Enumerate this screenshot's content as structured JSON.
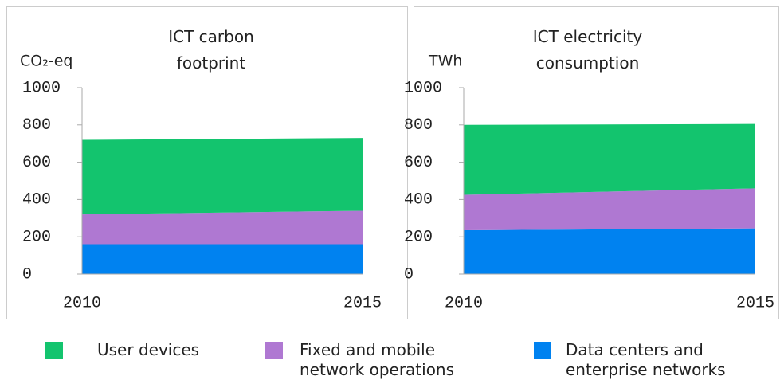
{
  "chart_data": [
    {
      "type": "stacked_area",
      "title": "ICT carbon footprint",
      "y_label": "CO₂-eq",
      "x": [
        2010,
        2015
      ],
      "xlim": [
        2010,
        2015
      ],
      "xticks": [
        2010,
        2015
      ],
      "ylim": [
        0,
        1000
      ],
      "yticks": [
        0,
        200,
        400,
        600,
        800,
        1000
      ],
      "series": [
        {
          "name": "Data centers and enterprise networks",
          "color": "#0082f0",
          "values": [
            160,
            160
          ]
        },
        {
          "name": "Fixed and mobile network operations",
          "color": "#af78d2",
          "values": [
            160,
            180
          ]
        },
        {
          "name": "User devices",
          "color": "#13c46e",
          "values": [
            400,
            390
          ]
        }
      ]
    },
    {
      "type": "stacked_area",
      "title": "ICT electricity consumption",
      "y_label": "TWh",
      "x": [
        2010,
        2015
      ],
      "xlim": [
        2010,
        2015
      ],
      "xticks": [
        2010,
        2015
      ],
      "ylim": [
        0,
        1000
      ],
      "yticks": [
        0,
        200,
        400,
        600,
        800,
        1000
      ],
      "series": [
        {
          "name": "Data centers and enterprise networks",
          "color": "#0082f0",
          "values": [
            235,
            245
          ]
        },
        {
          "name": "Fixed and mobile network operations",
          "color": "#af78d2",
          "values": [
            190,
            215
          ]
        },
        {
          "name": "User devices",
          "color": "#13c46e",
          "values": [
            375,
            345
          ]
        }
      ]
    }
  ]
}
